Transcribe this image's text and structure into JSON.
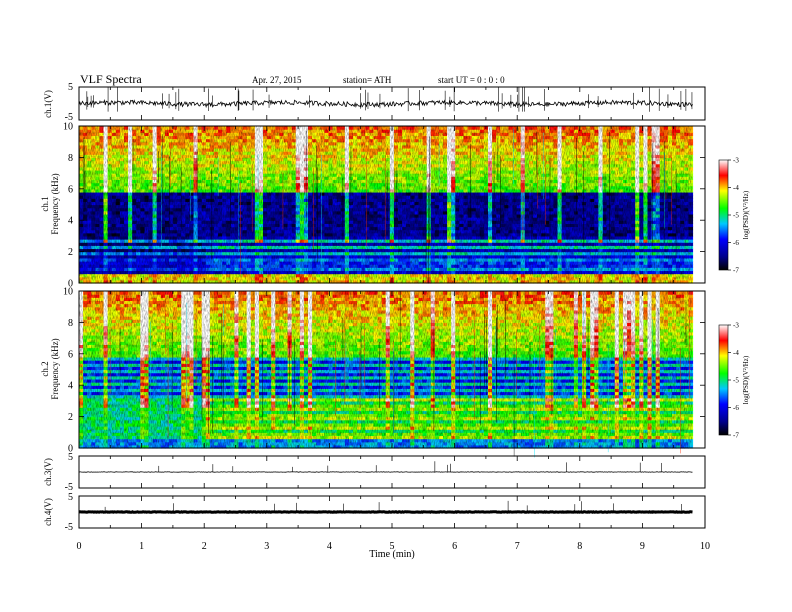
{
  "header": {
    "title": "VLF Spectra",
    "date": "Apr. 27, 2015",
    "station": "station= ATH",
    "start": "start  UT =   0 : 0 : 0"
  },
  "chart_data": {
    "type": "heatmap",
    "x_axis": {
      "label": "Time  (min)",
      "range": [
        0,
        10
      ],
      "ticks": [
        "0",
        "1",
        "2",
        "3",
        "4",
        "5",
        "6",
        "7",
        "8",
        "9",
        "10"
      ]
    },
    "panels": [
      {
        "id": "ch1_waveform",
        "type": "line",
        "ylabel": "ch.1(V)",
        "ylim": [
          -5,
          5
        ],
        "yticks": [
          "5",
          "-5"
        ],
        "data_end_min": 9.8
      },
      {
        "id": "ch1_spectrogram",
        "type": "heatmap",
        "channel_label": "ch.1",
        "ylabel": "Frequency  (kHz)",
        "ylim": [
          0,
          10
        ],
        "yticks": [
          "0",
          "2",
          "4",
          "6",
          "8",
          "10"
        ],
        "data_end_min": 9.8,
        "colorbar": {
          "label": "log(PSD)(V²/Hz)",
          "range": [
            -7,
            -3
          ],
          "ticks": [
            "-3",
            "-4",
            "-5",
            "-6",
            "-7"
          ]
        }
      },
      {
        "id": "ch2_spectrogram",
        "type": "heatmap",
        "channel_label": "ch.2",
        "ylabel": "Frequency  (kHz)",
        "ylim": [
          0,
          10
        ],
        "yticks": [
          "0",
          "2",
          "4",
          "6",
          "8",
          "10"
        ],
        "data_end_min": 9.8,
        "colorbar": {
          "label": "log(PSD)(V²/Hz)",
          "range": [
            -7,
            -3
          ],
          "ticks": [
            "-3",
            "-4",
            "-5",
            "-6",
            "-7"
          ]
        }
      },
      {
        "id": "ch3_waveform",
        "type": "line",
        "ylabel": "ch.3(V)",
        "ylim": [
          -5,
          5
        ],
        "yticks": [
          "5",
          "-5"
        ],
        "data_end_min": 9.8
      },
      {
        "id": "ch4_waveform",
        "type": "line",
        "ylabel": "ch.4(V)",
        "ylim": [
          -5,
          5
        ],
        "yticks": [
          "5",
          "-5"
        ],
        "data_end_min": 9.8
      }
    ]
  }
}
